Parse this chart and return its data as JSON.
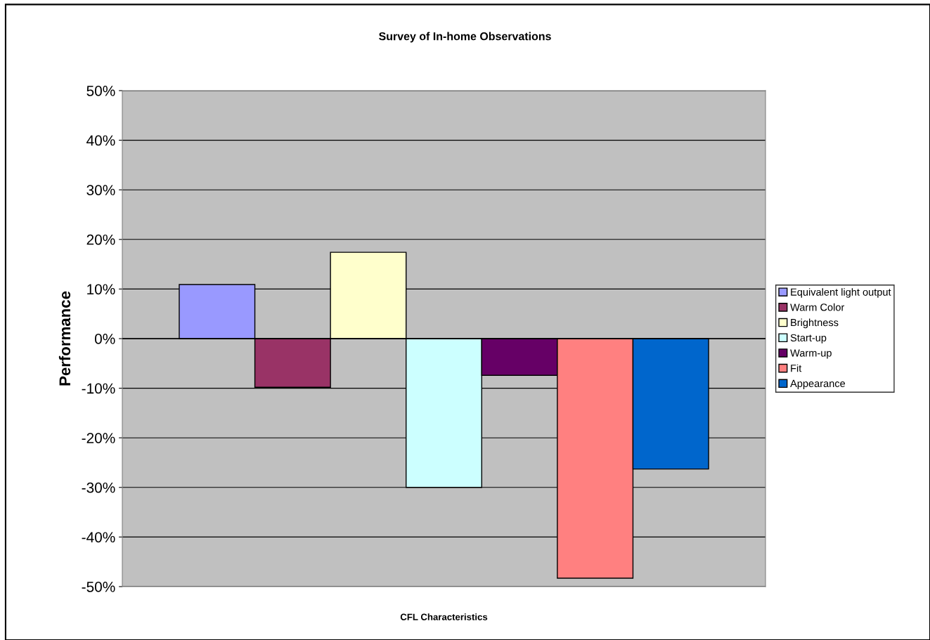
{
  "chart_data": {
    "type": "bar",
    "title": "Survey of In-home Observations",
    "xlabel": "CFL Characteristics",
    "ylabel": "Performance",
    "categories": [
      null
    ],
    "series": [
      {
        "name": "Equivalent light output",
        "color": "#9999ff",
        "values": [
          10.9
        ]
      },
      {
        "name": "Warm Color",
        "color": "#993366",
        "values": [
          -9.8
        ]
      },
      {
        "name": "Brightness",
        "color": "#ffffcc",
        "values": [
          17.4
        ]
      },
      {
        "name": "Start-up",
        "color": "#ccffff",
        "values": [
          -30.0
        ]
      },
      {
        "name": "Warm-up",
        "color": "#660066",
        "values": [
          -7.4
        ]
      },
      {
        "name": "Fit",
        "color": "#ff8080",
        "values": [
          -48.3
        ]
      },
      {
        "name": "Appearance",
        "color": "#0066cc",
        "values": [
          -26.3
        ]
      }
    ],
    "ylim": [
      -50,
      50
    ],
    "yticks": [
      {
        "value": -50,
        "label": "-50%"
      },
      {
        "value": -40,
        "label": "-40%"
      },
      {
        "value": -30,
        "label": "-30%"
      },
      {
        "value": -20,
        "label": "-20%"
      },
      {
        "value": -10,
        "label": "-10%"
      },
      {
        "value": 0,
        "label": "0%"
      },
      {
        "value": 10,
        "label": "10%"
      },
      {
        "value": 20,
        "label": "20%"
      },
      {
        "value": 30,
        "label": "30%"
      },
      {
        "value": 40,
        "label": "40%"
      },
      {
        "value": 50,
        "label": "50%"
      }
    ],
    "grid": "y",
    "legend": "right"
  }
}
